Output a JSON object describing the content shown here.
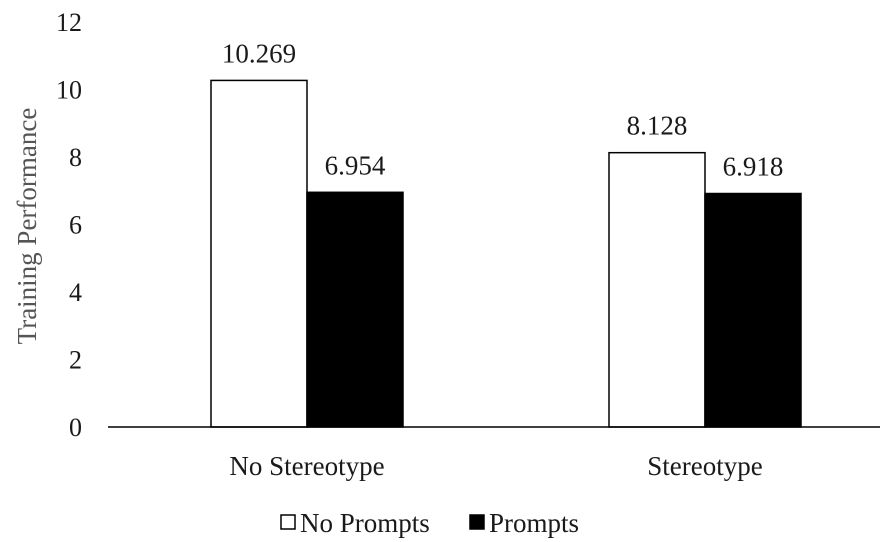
{
  "chart_data": {
    "type": "bar",
    "title": "",
    "xlabel": "",
    "ylabel": "Training Performance",
    "ylim": [
      0,
      12
    ],
    "yticks": [
      0,
      2,
      4,
      6,
      8,
      10,
      12
    ],
    "grid": false,
    "legend_position": "bottom",
    "categories": [
      "No Stereotype",
      "Stereotype"
    ],
    "series": [
      {
        "name": "No Prompts",
        "values": [
          10.269,
          8.128
        ],
        "labels": [
          "10.269",
          "8.128"
        ],
        "fill": "#ffffff",
        "stroke": "#000000"
      },
      {
        "name": "Prompts",
        "values": [
          6.954,
          6.918
        ],
        "labels": [
          "6.954",
          "6.918"
        ],
        "fill": "#000000",
        "stroke": "#000000"
      }
    ]
  }
}
